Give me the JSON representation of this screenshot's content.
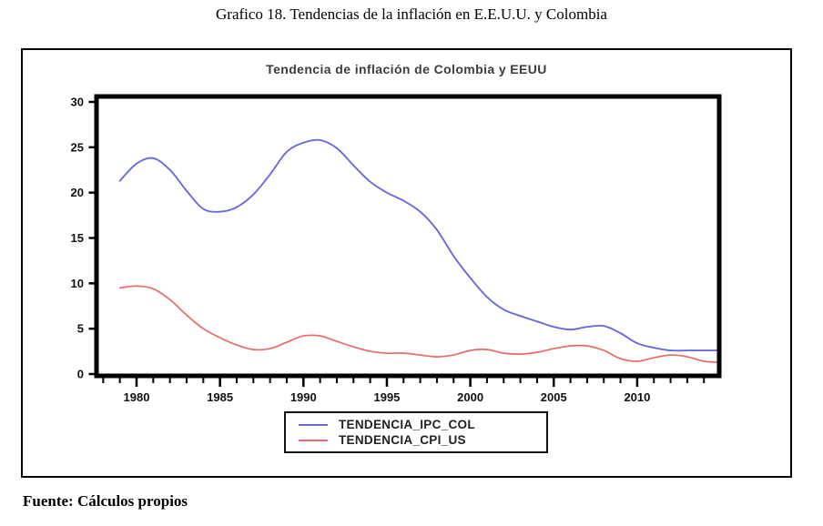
{
  "page": {
    "caption": "Grafico 18. Tendencias de la inflación en E.E.U.U. y Colombia",
    "source": "Fuente: Cálculos propios"
  },
  "chart": {
    "title": "Tendencia de inflación de Colombia y EEUU"
  },
  "chart_data": {
    "type": "line",
    "title": "Tendencia de inflación de Colombia y EEUU",
    "xlabel": "",
    "ylabel": "",
    "ylim": [
      0,
      30
    ],
    "yticks": [
      0,
      5,
      10,
      15,
      20,
      25,
      30
    ],
    "xlim": [
      1977.6,
      2014.9
    ],
    "xticks_labeled": [
      1980,
      1985,
      1990,
      1995,
      2000,
      2005,
      2010
    ],
    "xticks_minor_every_year_from": 1978,
    "xticks_minor_every_year_to": 2014,
    "grid": false,
    "legend_position": "bottom-outside-centered",
    "frame_color": "#000000",
    "x": [
      1979,
      1980,
      1981,
      1982,
      1983,
      1984,
      1985,
      1986,
      1987,
      1988,
      1989,
      1990,
      1991,
      1992,
      1993,
      1994,
      1995,
      1996,
      1997,
      1998,
      1999,
      2000,
      2001,
      2002,
      2003,
      2004,
      2005,
      2006,
      2007,
      2008,
      2009,
      2010,
      2011,
      2012,
      2013,
      2014,
      2014.8
    ],
    "series": [
      {
        "name": "TENDENCIA_IPC_COL",
        "color": "#6a6ade",
        "values": [
          21.3,
          23.2,
          23.8,
          22.5,
          20.2,
          18.2,
          17.9,
          18.4,
          19.8,
          22.0,
          24.5,
          25.5,
          25.8,
          24.9,
          23.0,
          21.2,
          20.0,
          19.1,
          17.9,
          15.9,
          13.0,
          10.6,
          8.5,
          7.1,
          6.4,
          5.8,
          5.2,
          4.9,
          5.2,
          5.3,
          4.5,
          3.4,
          2.9,
          2.6,
          2.6,
          2.6,
          2.6
        ]
      },
      {
        "name": "TENDENCIA_CPI_US",
        "color": "#ea6a6a",
        "values": [
          9.5,
          9.7,
          9.4,
          8.2,
          6.5,
          5.0,
          4.0,
          3.2,
          2.7,
          2.8,
          3.5,
          4.2,
          4.2,
          3.6,
          3.0,
          2.5,
          2.3,
          2.3,
          2.1,
          1.9,
          2.1,
          2.6,
          2.7,
          2.3,
          2.2,
          2.4,
          2.8,
          3.1,
          3.1,
          2.6,
          1.7,
          1.4,
          1.8,
          2.1,
          1.9,
          1.4,
          1.3
        ]
      }
    ]
  }
}
